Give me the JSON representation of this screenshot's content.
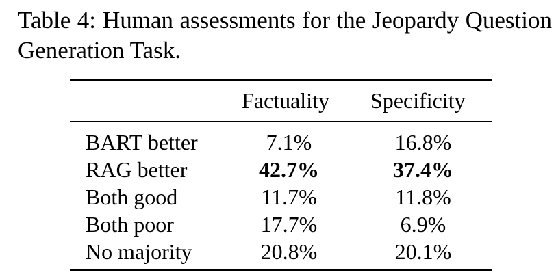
{
  "caption": {
    "label": "Table 4:",
    "text": "Human assessments for the Jeopardy Question Generation Task."
  },
  "table": {
    "headers": [
      "",
      "Factuality",
      "Specificity"
    ],
    "rows": [
      {
        "label": "BART better",
        "factuality": "7.1%",
        "specificity": "16.8%",
        "bold": false
      },
      {
        "label": "RAG better",
        "factuality": "42.7%",
        "specificity": "37.4%",
        "bold": true
      },
      {
        "label": "Both good",
        "factuality": "11.7%",
        "specificity": "11.8%",
        "bold": false
      },
      {
        "label": "Both poor",
        "factuality": "17.7%",
        "specificity": "6.9%",
        "bold": false
      },
      {
        "label": "No majority",
        "factuality": "20.8%",
        "specificity": "20.1%",
        "bold": false
      }
    ]
  }
}
